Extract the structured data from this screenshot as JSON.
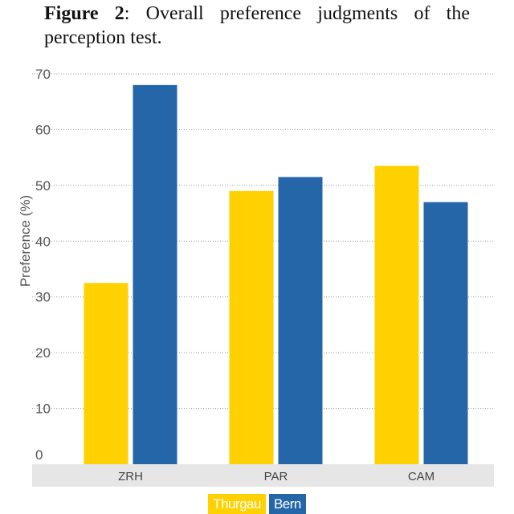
{
  "caption": {
    "label": "Figure 2",
    "text": ": Overall preference judgments of the perception test."
  },
  "colors": {
    "thurgau": "#FFD100",
    "bern": "#2466A8",
    "grid": "#999999",
    "axis_band": "#E6E6E6",
    "tick_text": "#555555"
  },
  "chart_data": {
    "type": "bar",
    "categories": [
      "ZRH",
      "PAR",
      "CAM"
    ],
    "series": [
      {
        "name": "Thurgau",
        "values": [
          32.5,
          49,
          53.5
        ]
      },
      {
        "name": "Bern",
        "values": [
          68,
          51.5,
          47
        ]
      }
    ],
    "yticks": [
      0,
      10,
      20,
      30,
      40,
      50,
      60,
      70
    ],
    "ylim": [
      0,
      70
    ],
    "ylabel": "Preference (%)",
    "xlabel": "",
    "grid": true,
    "legend_position": "bottom-center"
  }
}
